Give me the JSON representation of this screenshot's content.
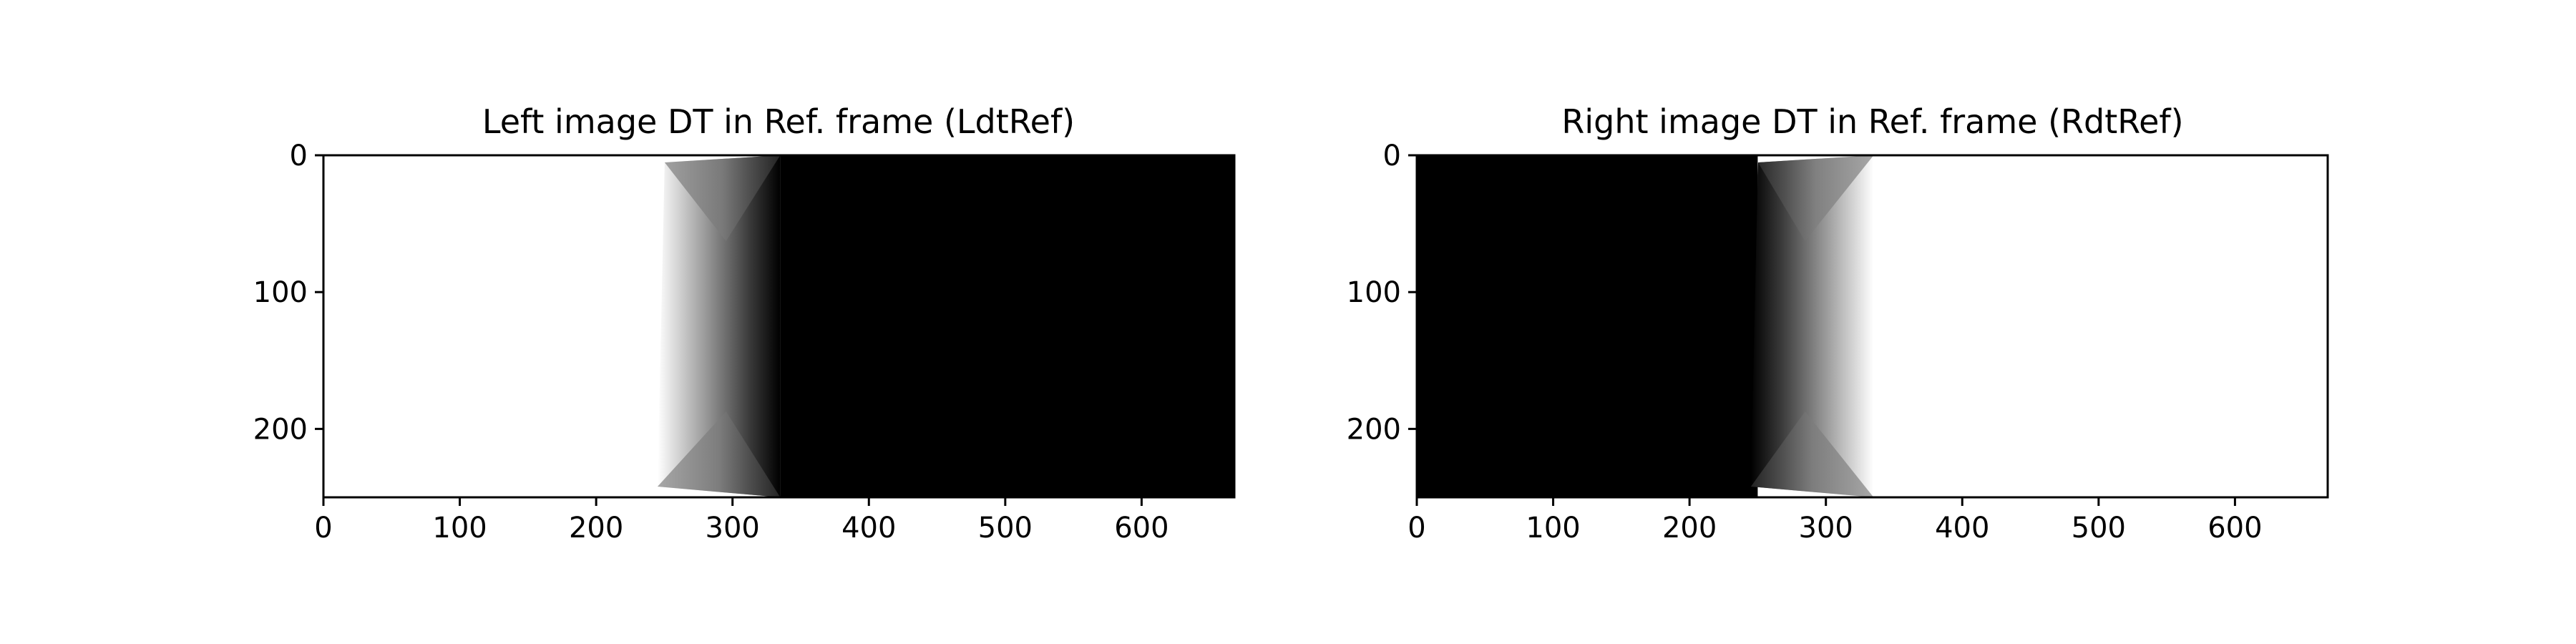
{
  "chart_data": [
    {
      "type": "heatmap",
      "title": "Left image DT in Ref. frame (LdtRef)",
      "xlabel": "",
      "ylabel": "",
      "xlim": [
        0,
        668
      ],
      "ylim": [
        250,
        0
      ],
      "x_ticks": [
        0,
        100,
        200,
        300,
        400,
        500,
        600
      ],
      "y_ticks": [
        0,
        100,
        200
      ],
      "colormap": "gray",
      "image": {
        "description_of_regions_in_data_units": null,
        "white_region_x": [
          0,
          250
        ],
        "transition_region_x": [
          245,
          335
        ],
        "black_region_x": [
          335,
          668
        ]
      }
    },
    {
      "type": "heatmap",
      "title": "Right image DT in Ref. frame (RdtRef)",
      "xlabel": "",
      "ylabel": "",
      "xlim": [
        0,
        668
      ],
      "ylim": [
        250,
        0
      ],
      "x_ticks": [
        0,
        100,
        200,
        300,
        400,
        500,
        600
      ],
      "y_ticks": [
        0,
        100,
        200
      ],
      "colormap": "gray",
      "image": {
        "description_of_regions_in_data_units": null,
        "black_region_x": [
          0,
          250
        ],
        "transition_region_x": [
          245,
          335
        ],
        "white_region_x": [
          335,
          668
        ]
      }
    }
  ]
}
